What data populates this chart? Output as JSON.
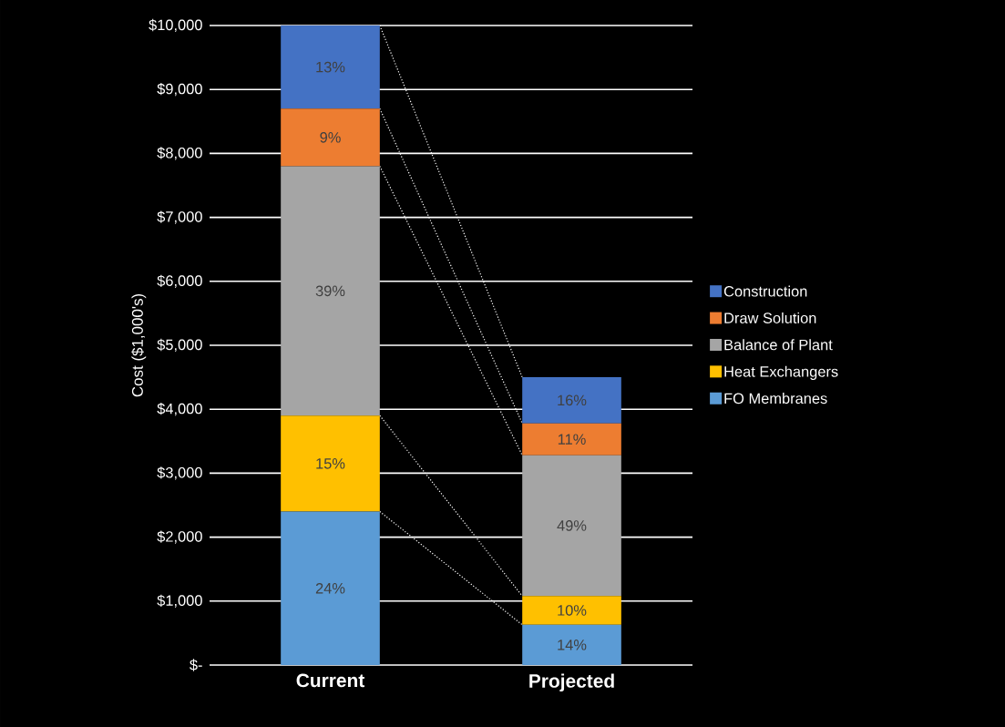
{
  "chart_data": {
    "type": "bar",
    "stacked": true,
    "ylabel": "Cost ($1,000's)",
    "categories": [
      "Current",
      "Projected"
    ],
    "series": [
      {
        "name": "FO Membranes",
        "color": "#5b9bd5",
        "values": [
          2400,
          630
        ]
      },
      {
        "name": "Heat Exchangers",
        "color": "#ffc000",
        "values": [
          1500,
          450
        ]
      },
      {
        "name": "Balance of Plant",
        "color": "#a5a5a5",
        "values": [
          3900,
          2200
        ]
      },
      {
        "name": "Draw Solution",
        "color": "#ed7d31",
        "values": [
          900,
          500
        ]
      },
      {
        "name": "Construction",
        "color": "#4472c4",
        "values": [
          1300,
          720
        ]
      }
    ],
    "annotations": [
      "24%",
      "15%",
      "39%",
      "9%",
      "13%",
      "14%",
      "10%",
      "49%",
      "11%",
      "16%"
    ],
    "ylim": [
      0,
      10000
    ],
    "yticks": [
      {
        "value": 0,
        "label": "$-"
      },
      {
        "value": 1000,
        "label": "$1,000"
      },
      {
        "value": 2000,
        "label": "$2,000"
      },
      {
        "value": 3000,
        "label": "$3,000"
      },
      {
        "value": 4000,
        "label": "$4,000"
      },
      {
        "value": 5000,
        "label": "$5,000"
      },
      {
        "value": 6000,
        "label": "$6,000"
      },
      {
        "value": 7000,
        "label": "$7,000"
      },
      {
        "value": 8000,
        "label": "$8,000"
      },
      {
        "value": 9000,
        "label": "$9,000"
      },
      {
        "value": 10000,
        "label": "$10,000"
      }
    ],
    "grid": "y",
    "legend": "right"
  }
}
